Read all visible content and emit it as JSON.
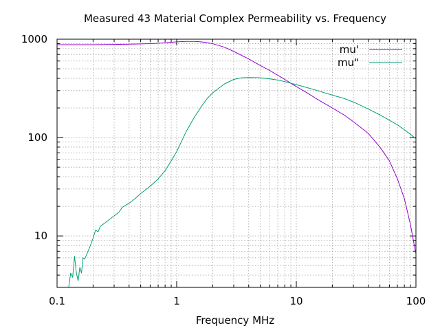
{
  "chart_data": {
    "type": "line",
    "title": "Measured 43 Material Complex Permeability vs. Frequency",
    "xlabel": "Frequency MHz",
    "ylabel": "",
    "xscale": "log",
    "yscale": "log",
    "xlim": [
      0.1,
      100
    ],
    "ylim": [
      3,
      1000
    ],
    "grid": true,
    "legend_position": "top-right",
    "x_ticks": [
      {
        "value": 0.1,
        "label": "0.1"
      },
      {
        "value": 1,
        "label": "1"
      },
      {
        "value": 10,
        "label": "10"
      },
      {
        "value": 100,
        "label": "100"
      }
    ],
    "y_ticks": [
      {
        "value": 10,
        "label": "10"
      },
      {
        "value": 100,
        "label": "100"
      },
      {
        "value": 1000,
        "label": "1000"
      }
    ],
    "series": [
      {
        "name": "mu'",
        "color": "#9400d3",
        "points": [
          [
            0.1,
            880
          ],
          [
            0.15,
            880
          ],
          [
            0.2,
            880
          ],
          [
            0.3,
            885
          ],
          [
            0.4,
            890
          ],
          [
            0.5,
            895
          ],
          [
            0.6,
            900
          ],
          [
            0.7,
            910
          ],
          [
            0.8,
            920
          ],
          [
            0.9,
            930
          ],
          [
            1.0,
            940
          ],
          [
            1.2,
            950
          ],
          [
            1.4,
            950
          ],
          [
            1.6,
            940
          ],
          [
            1.8,
            920
          ],
          [
            2.0,
            900
          ],
          [
            2.5,
            830
          ],
          [
            3.0,
            750
          ],
          [
            4.0,
            630
          ],
          [
            5.0,
            540
          ],
          [
            6.0,
            480
          ],
          [
            7.0,
            430
          ],
          [
            8.0,
            390
          ],
          [
            10,
            330
          ],
          [
            12,
            290
          ],
          [
            15,
            245
          ],
          [
            20,
            200
          ],
          [
            25,
            170
          ],
          [
            30,
            145
          ],
          [
            40,
            110
          ],
          [
            50,
            80
          ],
          [
            60,
            58
          ],
          [
            70,
            38
          ],
          [
            80,
            24
          ],
          [
            90,
            13
          ],
          [
            100,
            6.5
          ]
        ]
      },
      {
        "name": "mu\"",
        "color": "#009e73",
        "points": [
          [
            0.125,
            3.0
          ],
          [
            0.13,
            4.2
          ],
          [
            0.135,
            3.8
          ],
          [
            0.14,
            6.2
          ],
          [
            0.145,
            4.2
          ],
          [
            0.15,
            3.5
          ],
          [
            0.155,
            4.8
          ],
          [
            0.16,
            4.2
          ],
          [
            0.165,
            6.0
          ],
          [
            0.17,
            5.8
          ],
          [
            0.18,
            6.8
          ],
          [
            0.19,
            8.0
          ],
          [
            0.2,
            9.5
          ],
          [
            0.21,
            11.5
          ],
          [
            0.22,
            11.0
          ],
          [
            0.23,
            12.5
          ],
          [
            0.25,
            13.5
          ],
          [
            0.27,
            14.5
          ],
          [
            0.3,
            16.0
          ],
          [
            0.33,
            17.5
          ],
          [
            0.35,
            19.5
          ],
          [
            0.4,
            21.5
          ],
          [
            0.45,
            24.0
          ],
          [
            0.5,
            27.0
          ],
          [
            0.6,
            32.0
          ],
          [
            0.7,
            38.0
          ],
          [
            0.8,
            46.0
          ],
          [
            0.9,
            58.0
          ],
          [
            1.0,
            72.0
          ],
          [
            1.2,
            115
          ],
          [
            1.4,
            160
          ],
          [
            1.6,
            205
          ],
          [
            1.8,
            250
          ],
          [
            2.0,
            285
          ],
          [
            2.5,
            350
          ],
          [
            3.0,
            390
          ],
          [
            3.5,
            405
          ],
          [
            4.0,
            408
          ],
          [
            5.0,
            405
          ],
          [
            6.0,
            395
          ],
          [
            7.0,
            385
          ],
          [
            8.0,
            370
          ],
          [
            10,
            345
          ],
          [
            12,
            325
          ],
          [
            15,
            300
          ],
          [
            20,
            270
          ],
          [
            25,
            250
          ],
          [
            30,
            230
          ],
          [
            40,
            195
          ],
          [
            50,
            170
          ],
          [
            60,
            150
          ],
          [
            70,
            135
          ],
          [
            80,
            120
          ],
          [
            90,
            108
          ],
          [
            100,
            97
          ]
        ]
      }
    ]
  }
}
